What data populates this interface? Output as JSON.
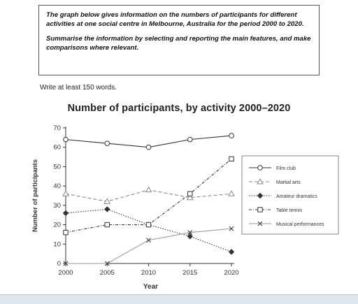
{
  "task": {
    "paragraph1": "The graph below gives information on the numbers of participants for different activities at one social centre in Melbourne, Australia for the period 2000 to 2020.",
    "paragraph2": "Summarise the information by selecting and reporting the main features, and make comparisons where relevant."
  },
  "instruction": "Write at least 150 words.",
  "chart_data": {
    "type": "line",
    "title": "Number of participants, by activity 2000–2020",
    "xlabel": "Year",
    "ylabel": "Number of participants",
    "x": [
      2000,
      2005,
      2010,
      2015,
      2020
    ],
    "xticks": [
      "2000",
      "2005",
      "2010",
      "2015",
      "2020"
    ],
    "yticks": [
      "0",
      "10",
      "20",
      "30",
      "40",
      "50",
      "60",
      "70"
    ],
    "ylim": [
      0,
      70
    ],
    "grid": false,
    "legend_position": "right",
    "series": [
      {
        "name": "Film club",
        "values": [
          64,
          62,
          60,
          64,
          66
        ],
        "marker": "circle",
        "line": "solid",
        "color": "#333333"
      },
      {
        "name": "Martial arts",
        "values": [
          36,
          32,
          38,
          34,
          36
        ],
        "marker": "triangle",
        "line": "dashed",
        "color": "#888888"
      },
      {
        "name": "Amateur dramatics",
        "values": [
          26,
          28,
          20,
          14,
          6
        ],
        "marker": "diamond",
        "line": "dotted",
        "color": "#333333"
      },
      {
        "name": "Table tennis",
        "values": [
          16,
          20,
          20,
          36,
          54
        ],
        "marker": "square",
        "line": "dashdot",
        "color": "#333333"
      },
      {
        "name": "Musical performances",
        "values": [
          0,
          0,
          12,
          16,
          18
        ],
        "marker": "cross",
        "line": "solid",
        "color": "#999999"
      }
    ]
  }
}
